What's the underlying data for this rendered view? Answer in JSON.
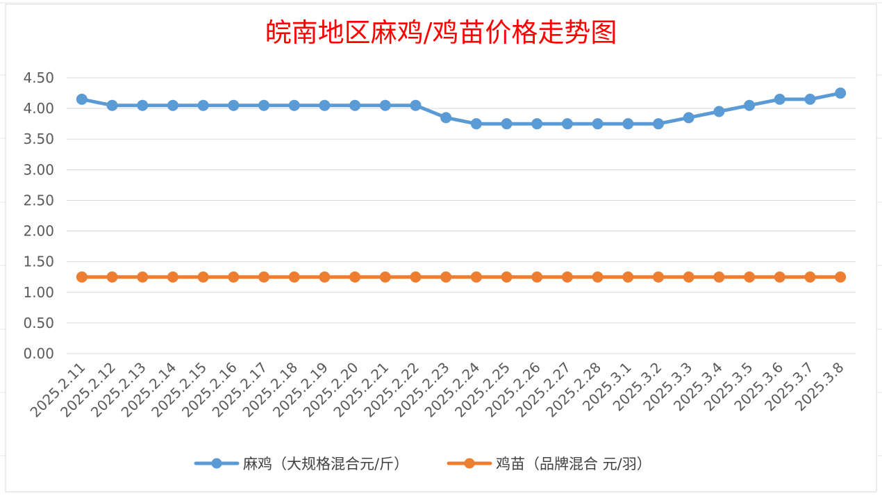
{
  "chart_data": {
    "type": "line",
    "title": "皖南地区麻鸡/鸡苗价格走势图",
    "xlabel": "",
    "ylabel": "",
    "ylim": [
      0,
      4.5
    ],
    "yticks": [
      "0.00",
      "0.50",
      "1.00",
      "1.50",
      "2.00",
      "2.50",
      "3.00",
      "3.50",
      "4.00",
      "4.50"
    ],
    "grid": true,
    "legend_position": "bottom",
    "categories": [
      "2025.2.11",
      "2025.2.12",
      "2025.2.13",
      "2025.2.14",
      "2025.2.15",
      "2025.2.16",
      "2025.2.17",
      "2025.2.18",
      "2025.2.19",
      "2025.2.20",
      "2025.2.21",
      "2025.2.22",
      "2025.2.23",
      "2025.2.24",
      "2025.2.25",
      "2025.2.26",
      "2025.2.27",
      "2025.2.28",
      "2025.3.1",
      "2025.3.2",
      "2025.3.3",
      "2025.3.4",
      "2025.3.5",
      "2025.3.6",
      "2025.3.7",
      "2025.3.8"
    ],
    "series": [
      {
        "name": "麻鸡（大规格混合元/斤）",
        "color": "#5b9bd5",
        "values": [
          4.15,
          4.05,
          4.05,
          4.05,
          4.05,
          4.05,
          4.05,
          4.05,
          4.05,
          4.05,
          4.05,
          4.05,
          3.85,
          3.75,
          3.75,
          3.75,
          3.75,
          3.75,
          3.75,
          3.75,
          3.85,
          3.95,
          4.05,
          4.15,
          4.15,
          4.25
        ]
      },
      {
        "name": "鸡苗（品牌混合 元/羽）",
        "color": "#ed7d31",
        "values": [
          1.25,
          1.25,
          1.25,
          1.25,
          1.25,
          1.25,
          1.25,
          1.25,
          1.25,
          1.25,
          1.25,
          1.25,
          1.25,
          1.25,
          1.25,
          1.25,
          1.25,
          1.25,
          1.25,
          1.25,
          1.25,
          1.25,
          1.25,
          1.25,
          1.25,
          1.25
        ]
      }
    ]
  }
}
